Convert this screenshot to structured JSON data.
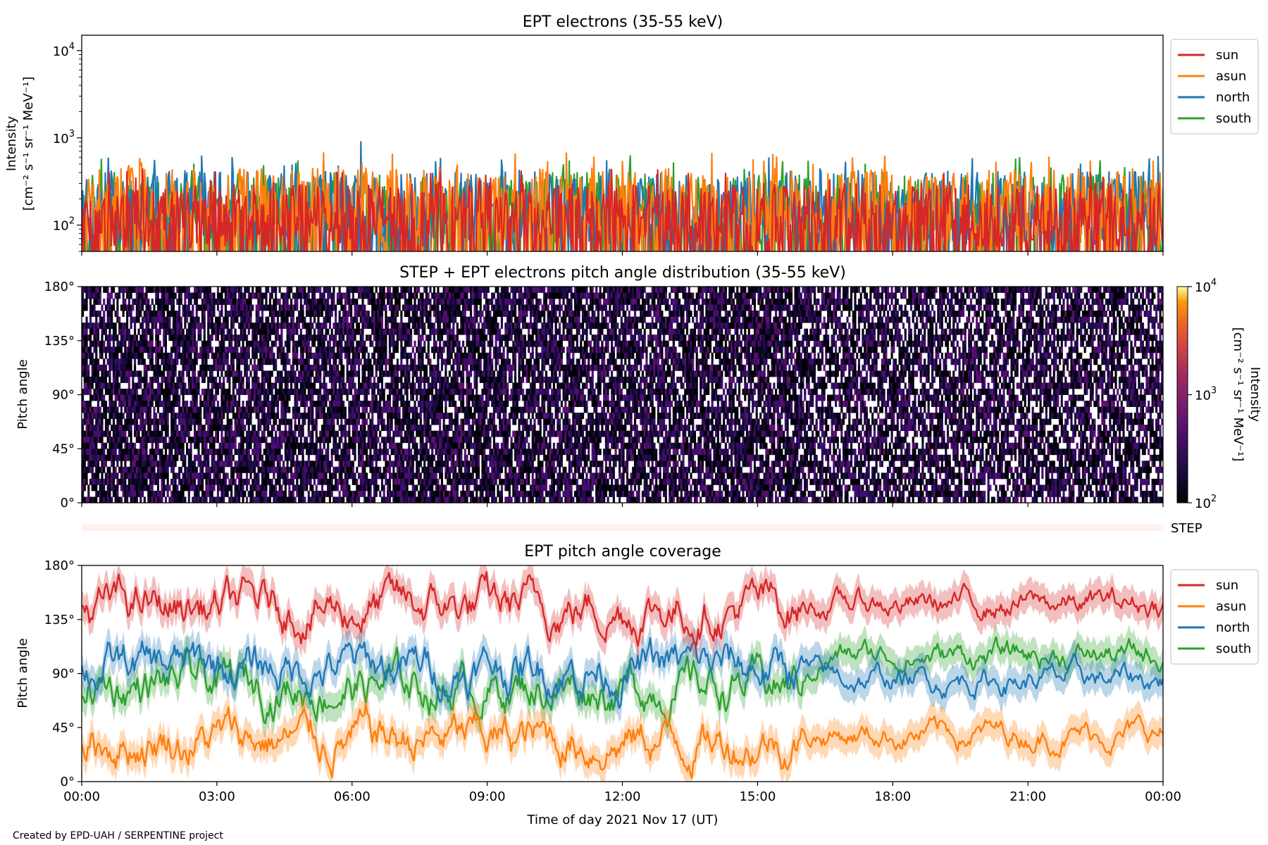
{
  "credit": "Created by EPD-UAH / SERPENTINE project",
  "colors": {
    "sun": "#d62728",
    "asun": "#ff7f0e",
    "north": "#1f77b4",
    "south": "#2ca02c"
  },
  "chart_data": [
    {
      "type": "line",
      "title": "EPT electrons (35-55 keV)",
      "ylabel_line1": "Intensity",
      "ylabel_line2": "[cm⁻² s⁻¹ sr⁻¹ MeV⁻¹]",
      "yscale": "log",
      "ylim": [
        50,
        15000
      ],
      "yticks": [
        {
          "base": "10",
          "exp": "2",
          "value": 100
        },
        {
          "base": "10",
          "exp": "3",
          "value": 1000
        },
        {
          "base": "10",
          "exp": "4",
          "value": 10000
        }
      ],
      "xlim": [
        "2021-11-17 00:00",
        "2021-11-18 00:00"
      ],
      "legend": "outside-right-top",
      "series": [
        {
          "name": "sun",
          "color": "#d62728",
          "typical_range": [
            55,
            300
          ]
        },
        {
          "name": "asun",
          "color": "#ff7f0e",
          "typical_range": [
            60,
            450
          ]
        },
        {
          "name": "north",
          "color": "#1f77b4",
          "typical_range": [
            60,
            420
          ],
          "peak": {
            "x": "06:12",
            "y": 900
          }
        },
        {
          "name": "south",
          "color": "#2ca02c",
          "typical_range": [
            60,
            400
          ],
          "peak": {
            "x": "12:10",
            "y": 620
          }
        }
      ]
    },
    {
      "type": "heatmap",
      "title": "STEP + EPT electrons pitch angle distribution (35-55 keV)",
      "ylabel": "Pitch angle",
      "ylim": [
        0,
        180
      ],
      "yticks": [
        "0°",
        "45°",
        "90°",
        "135°",
        "180°"
      ],
      "colorbar": {
        "label_line1": "Intensity",
        "label_line2": "[cm⁻² s⁻¹ sr⁻¹ MeV⁻¹]",
        "scale": "log",
        "range": [
          100,
          10000
        ],
        "ticks": [
          {
            "base": "10",
            "exp": "2"
          },
          {
            "base": "10",
            "exp": "3"
          },
          {
            "base": "10",
            "exp": "4"
          }
        ],
        "colormap": "inferno"
      }
    },
    {
      "type": "bar",
      "label": "STEP",
      "color": "#fff1ec"
    },
    {
      "type": "line",
      "title": "EPT pitch angle coverage",
      "ylabel": "Pitch angle",
      "xlabel": "Time of day 2021 Nov 17 (UT)",
      "ylim": [
        0,
        180
      ],
      "yticks": [
        "0°",
        "45°",
        "90°",
        "135°",
        "180°"
      ],
      "xticks": [
        "00:00",
        "03:00",
        "06:00",
        "09:00",
        "12:00",
        "15:00",
        "18:00",
        "21:00",
        "00:00"
      ],
      "legend": "outside-right-top",
      "series": [
        {
          "name": "sun",
          "color": "#d62728",
          "mean_before_16h": 145,
          "mean_after_16h": 148
        },
        {
          "name": "asun",
          "color": "#ff7f0e",
          "mean_before_16h": 35,
          "mean_after_16h": 40
        },
        {
          "name": "north",
          "color": "#1f77b4",
          "mean_before_16h": 95,
          "mean_after_16h": 85
        },
        {
          "name": "south",
          "color": "#2ca02c",
          "mean_before_16h": 80,
          "mean_after_16h": 105
        }
      ]
    }
  ]
}
